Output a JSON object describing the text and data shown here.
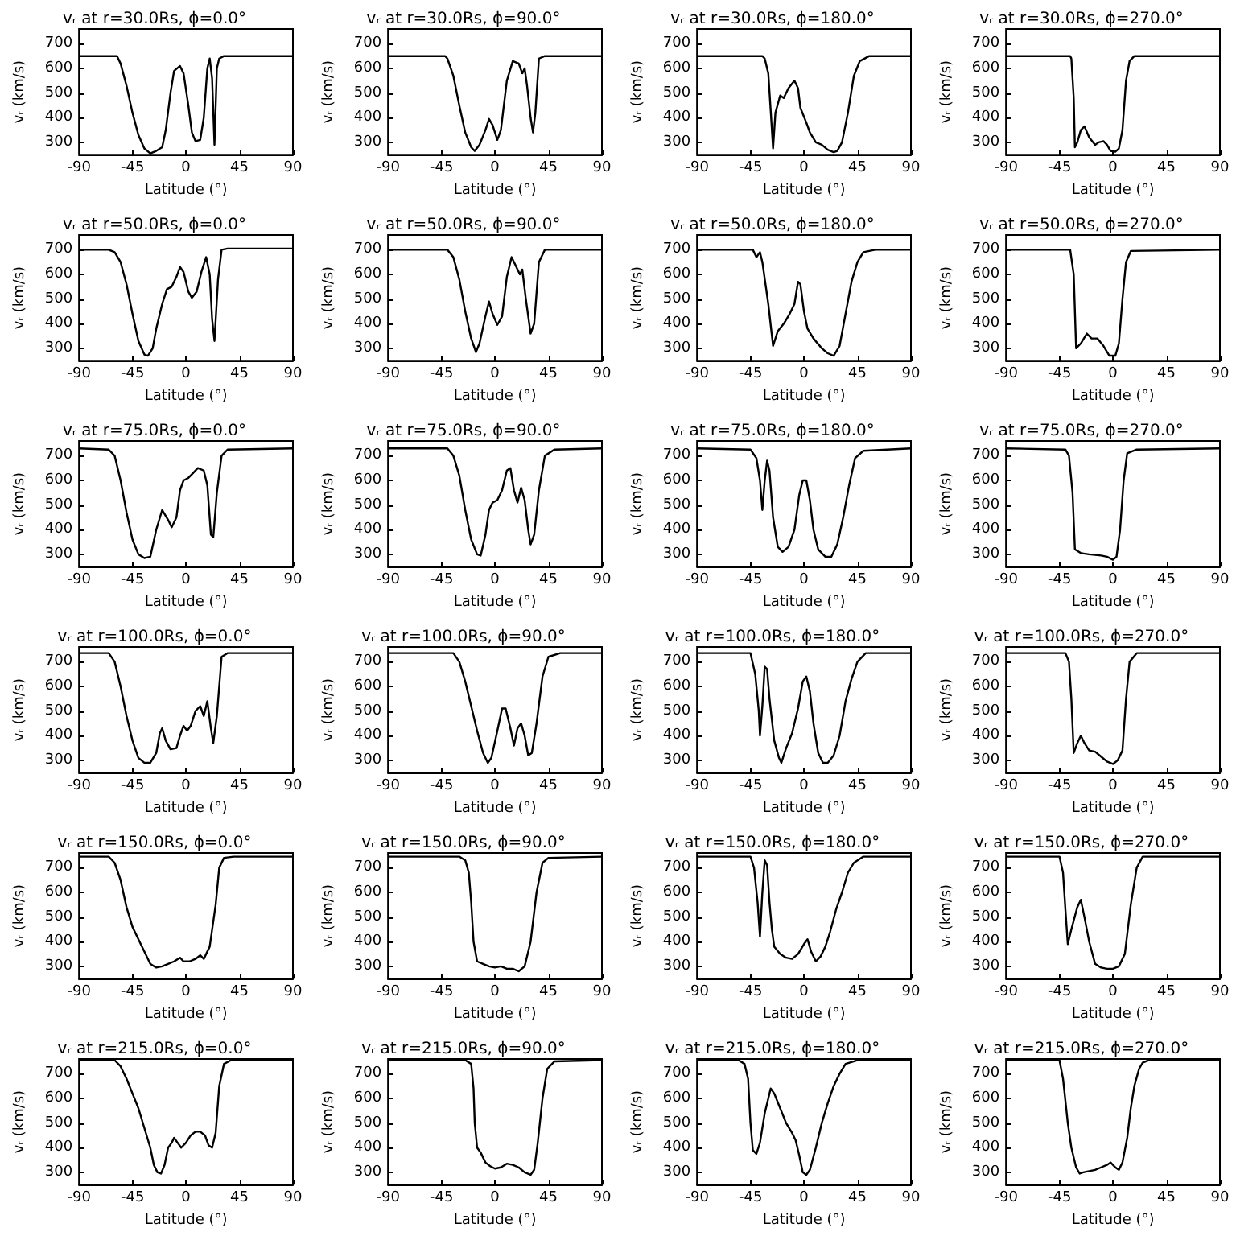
{
  "chart_data": [
    {
      "type": "line",
      "title": "vᵣ at r=30.0Rs, ϕ=0.0°",
      "xlabel": "Latitude (°)",
      "ylabel": "vᵣ (km/s)",
      "xlim": [
        -90,
        90
      ],
      "ylim": [
        250,
        760
      ],
      "xticks": [
        -90,
        -45,
        0,
        45,
        90
      ],
      "yticks": [
        300,
        400,
        500,
        600,
        700
      ],
      "color": "#000000",
      "x": [
        -90,
        -58,
        -55,
        -50,
        -45,
        -40,
        -35,
        -30,
        -25,
        -20,
        -17,
        -13,
        -10,
        -5,
        -2,
        2,
        5,
        8,
        12,
        15,
        18,
        20,
        22,
        24,
        26,
        28,
        32,
        90
      ],
      "values": [
        650,
        650,
        620,
        530,
        420,
        330,
        275,
        255,
        265,
        280,
        350,
        500,
        590,
        610,
        580,
        450,
        340,
        305,
        310,
        400,
        600,
        640,
        560,
        290,
        600,
        640,
        650,
        650
      ]
    },
    {
      "type": "line",
      "title": "vᵣ at r=30.0Rs, ϕ=90.0°",
      "xlabel": "Latitude (°)",
      "ylabel": "vᵣ (km/s)",
      "xlim": [
        -90,
        90
      ],
      "ylim": [
        250,
        760
      ],
      "xticks": [
        -90,
        -45,
        0,
        45,
        90
      ],
      "yticks": [
        300,
        400,
        500,
        600,
        700
      ],
      "color": "#000000",
      "x": [
        -90,
        -42,
        -40,
        -35,
        -30,
        -25,
        -20,
        -17,
        -13,
        -8,
        -5,
        -2,
        2,
        5,
        10,
        15,
        20,
        23,
        25,
        27,
        30,
        32,
        34,
        37,
        42,
        90
      ],
      "values": [
        650,
        650,
        640,
        570,
        450,
        340,
        280,
        265,
        290,
        350,
        395,
        370,
        310,
        350,
        550,
        630,
        620,
        580,
        600,
        530,
        400,
        340,
        420,
        640,
        650,
        650
      ]
    },
    {
      "type": "line",
      "title": "vᵣ at r=30.0Rs, ϕ=180.0°",
      "xlabel": "Latitude (°)",
      "ylabel": "vᵣ (km/s)",
      "xlim": [
        -90,
        90
      ],
      "ylim": [
        250,
        760
      ],
      "xticks": [
        -90,
        -45,
        0,
        45,
        90
      ],
      "yticks": [
        300,
        400,
        500,
        600,
        700
      ],
      "color": "#000000",
      "x": [
        -90,
        -35,
        -33,
        -30,
        -28,
        -26,
        -24,
        -20,
        -17,
        -13,
        -8,
        -5,
        -3,
        2,
        5,
        10,
        15,
        20,
        25,
        28,
        32,
        37,
        42,
        47,
        55,
        90
      ],
      "values": [
        650,
        650,
        640,
        580,
        430,
        275,
        420,
        490,
        480,
        520,
        550,
        520,
        440,
        380,
        340,
        300,
        290,
        270,
        260,
        265,
        300,
        420,
        570,
        630,
        650,
        650
      ]
    },
    {
      "type": "line",
      "title": "vᵣ at r=30.0Rs, ϕ=270.0°",
      "xlabel": "Latitude (°)",
      "ylabel": "vᵣ (km/s)",
      "xlim": [
        -90,
        90
      ],
      "ylim": [
        250,
        760
      ],
      "xticks": [
        -90,
        -45,
        0,
        45,
        90
      ],
      "yticks": [
        300,
        400,
        500,
        600,
        700
      ],
      "color": "#000000",
      "x": [
        -90,
        -36,
        -35,
        -33,
        -32,
        -30,
        -27,
        -24,
        -20,
        -15,
        -12,
        -8,
        -5,
        -2,
        2,
        5,
        8,
        11,
        14,
        18,
        90
      ],
      "values": [
        650,
        650,
        640,
        480,
        280,
        300,
        350,
        365,
        320,
        290,
        300,
        305,
        290,
        265,
        262,
        275,
        350,
        550,
        630,
        650,
        650
      ]
    },
    {
      "type": "line",
      "title": "vᵣ at r=50.0Rs, ϕ=0.0°",
      "xlabel": "Latitude (°)",
      "ylabel": "vᵣ (km/s)",
      "xlim": [
        -90,
        90
      ],
      "ylim": [
        250,
        760
      ],
      "xticks": [
        -90,
        -45,
        0,
        45,
        90
      ],
      "yticks": [
        300,
        400,
        500,
        600,
        700
      ],
      "color": "#000000",
      "x": [
        -90,
        -65,
        -60,
        -55,
        -50,
        -45,
        -40,
        -35,
        -32,
        -28,
        -25,
        -20,
        -16,
        -12,
        -8,
        -5,
        -2,
        2,
        5,
        9,
        13,
        17,
        20,
        22,
        24,
        27,
        30,
        35,
        90
      ],
      "values": [
        700,
        700,
        690,
        650,
        560,
        440,
        330,
        275,
        270,
        300,
        380,
        480,
        540,
        550,
        590,
        630,
        610,
        530,
        505,
        530,
        610,
        670,
        600,
        420,
        330,
        580,
        700,
        705,
        705
      ]
    },
    {
      "type": "line",
      "title": "vᵣ at r=50.0Rs, ϕ=90.0°",
      "xlabel": "Latitude (°)",
      "ylabel": "vᵣ (km/s)",
      "xlim": [
        -90,
        90
      ],
      "ylim": [
        250,
        760
      ],
      "xticks": [
        -90,
        -45,
        0,
        45,
        90
      ],
      "yticks": [
        300,
        400,
        500,
        600,
        700
      ],
      "color": "#000000",
      "x": [
        -90,
        -40,
        -35,
        -30,
        -25,
        -20,
        -16,
        -13,
        -8,
        -5,
        -2,
        2,
        6,
        10,
        14,
        18,
        21,
        23,
        26,
        30,
        33,
        37,
        42,
        90
      ],
      "values": [
        700,
        700,
        670,
        580,
        450,
        340,
        285,
        320,
        430,
        490,
        440,
        395,
        430,
        590,
        670,
        630,
        600,
        620,
        500,
        360,
        400,
        650,
        700,
        700
      ]
    },
    {
      "type": "line",
      "title": "vᵣ at r=50.0Rs, ϕ=180.0°",
      "xlabel": "Latitude (°)",
      "ylabel": "vᵣ (km/s)",
      "xlim": [
        -90,
        90
      ],
      "ylim": [
        250,
        760
      ],
      "xticks": [
        -90,
        -45,
        0,
        45,
        90
      ],
      "yticks": [
        300,
        400,
        500,
        600,
        700
      ],
      "color": "#000000",
      "x": [
        -90,
        -43,
        -40,
        -37,
        -35,
        -30,
        -26,
        -22,
        -17,
        -12,
        -8,
        -5,
        -3,
        0,
        3,
        8,
        15,
        20,
        25,
        30,
        35,
        40,
        45,
        50,
        60,
        90
      ],
      "values": [
        700,
        700,
        670,
        690,
        650,
        480,
        310,
        370,
        400,
        440,
        480,
        570,
        560,
        450,
        380,
        340,
        300,
        280,
        270,
        310,
        440,
        570,
        650,
        690,
        700,
        700
      ]
    },
    {
      "type": "line",
      "title": "vᵣ at r=50.0Rs, ϕ=270.0°",
      "xlabel": "Latitude (°)",
      "ylabel": "vᵣ (km/s)",
      "xlim": [
        -90,
        90
      ],
      "ylim": [
        250,
        760
      ],
      "xticks": [
        -90,
        -45,
        0,
        45,
        90
      ],
      "yticks": [
        300,
        400,
        500,
        600,
        700
      ],
      "color": "#000000",
      "x": [
        -90,
        -36,
        -33,
        -31,
        -27,
        -22,
        -18,
        -13,
        -8,
        -3,
        2,
        5,
        8,
        11,
        15,
        90
      ],
      "values": [
        700,
        700,
        600,
        300,
        320,
        360,
        340,
        340,
        310,
        270,
        270,
        320,
        500,
        650,
        695,
        700
      ]
    },
    {
      "type": "line",
      "title": "vᵣ at r=75.0Rs, ϕ=0.0°",
      "xlabel": "Latitude (°)",
      "ylabel": "vᵣ (km/s)",
      "xlim": [
        -90,
        90
      ],
      "ylim": [
        250,
        760
      ],
      "xticks": [
        -90,
        -45,
        0,
        45,
        90
      ],
      "yticks": [
        300,
        400,
        500,
        600,
        700
      ],
      "color": "#000000",
      "x": [
        -90,
        -65,
        -60,
        -55,
        -50,
        -45,
        -40,
        -35,
        -30,
        -25,
        -20,
        -15,
        -12,
        -8,
        -5,
        -2,
        2,
        6,
        10,
        15,
        18,
        21,
        23,
        26,
        30,
        35,
        90
      ],
      "values": [
        730,
        725,
        700,
        600,
        470,
        360,
        300,
        285,
        290,
        400,
        480,
        440,
        410,
        450,
        560,
        600,
        610,
        630,
        650,
        640,
        580,
        380,
        370,
        550,
        700,
        725,
        730
      ]
    },
    {
      "type": "line",
      "title": "vᵣ at r=75.0Rs, ϕ=90.0°",
      "xlabel": "Latitude (°)",
      "ylabel": "vᵣ (km/s)",
      "xlim": [
        -90,
        90
      ],
      "ylim": [
        250,
        760
      ],
      "xticks": [
        -90,
        -45,
        0,
        45,
        90
      ],
      "yticks": [
        300,
        400,
        500,
        600,
        700
      ],
      "color": "#000000",
      "x": [
        -90,
        -40,
        -35,
        -30,
        -25,
        -20,
        -15,
        -12,
        -8,
        -5,
        -2,
        2,
        6,
        10,
        13,
        16,
        19,
        22,
        25,
        28,
        30,
        33,
        37,
        42,
        50,
        90
      ],
      "values": [
        730,
        730,
        700,
        620,
        480,
        360,
        300,
        295,
        380,
        480,
        510,
        520,
        560,
        640,
        650,
        560,
        510,
        570,
        520,
        400,
        340,
        380,
        560,
        700,
        725,
        730
      ]
    },
    {
      "type": "line",
      "title": "vᵣ at r=75.0Rs, ϕ=180.0°",
      "xlabel": "Latitude (°)",
      "ylabel": "vᵣ (km/s)",
      "xlim": [
        -90,
        90
      ],
      "ylim": [
        250,
        760
      ],
      "xticks": [
        -90,
        -45,
        0,
        45,
        90
      ],
      "yticks": [
        300,
        400,
        500,
        600,
        700
      ],
      "color": "#000000",
      "x": [
        -90,
        -45,
        -40,
        -37,
        -35,
        -33,
        -31,
        -29,
        -26,
        -22,
        -18,
        -13,
        -8,
        -4,
        -1,
        2,
        5,
        8,
        12,
        18,
        23,
        28,
        33,
        38,
        43,
        50,
        90
      ],
      "values": [
        730,
        725,
        690,
        600,
        480,
        600,
        680,
        640,
        450,
        330,
        310,
        330,
        400,
        540,
        600,
        600,
        520,
        400,
        320,
        290,
        290,
        340,
        450,
        580,
        690,
        720,
        730
      ]
    },
    {
      "type": "line",
      "title": "vᵣ at r=75.0Rs, ϕ=270.0°",
      "xlabel": "Latitude (°)",
      "ylabel": "vᵣ (km/s)",
      "xlim": [
        -90,
        90
      ],
      "ylim": [
        250,
        760
      ],
      "xticks": [
        -90,
        -45,
        0,
        45,
        90
      ],
      "yticks": [
        300,
        400,
        500,
        600,
        700
      ],
      "color": "#000000",
      "x": [
        -90,
        -40,
        -37,
        -34,
        -32,
        -27,
        -20,
        -10,
        -5,
        0,
        3,
        6,
        9,
        12,
        20,
        90
      ],
      "values": [
        730,
        725,
        700,
        550,
        320,
        305,
        300,
        295,
        290,
        278,
        290,
        400,
        600,
        710,
        725,
        730
      ]
    },
    {
      "type": "line",
      "title": "vᵣ at r=100.0Rs, ϕ=0.0°",
      "xlabel": "Latitude (°)",
      "ylabel": "vᵣ (km/s)",
      "xlim": [
        -90,
        90
      ],
      "ylim": [
        250,
        760
      ],
      "xticks": [
        -90,
        -45,
        0,
        45,
        90
      ],
      "yticks": [
        300,
        400,
        500,
        600,
        700
      ],
      "color": "#000000",
      "x": [
        -90,
        -65,
        -60,
        -55,
        -50,
        -45,
        -40,
        -35,
        -30,
        -25,
        -22,
        -20,
        -17,
        -13,
        -8,
        -5,
        -2,
        1,
        4,
        8,
        12,
        15,
        18,
        21,
        23,
        26,
        30,
        35,
        90
      ],
      "values": [
        735,
        735,
        700,
        600,
        480,
        380,
        310,
        290,
        290,
        330,
        410,
        430,
        380,
        345,
        350,
        400,
        440,
        420,
        440,
        500,
        520,
        480,
        540,
        430,
        370,
        480,
        720,
        735,
        735
      ]
    },
    {
      "type": "line",
      "title": "vᵣ at r=100.0Rs, ϕ=90.0°",
      "xlabel": "Latitude (°)",
      "ylabel": "vᵣ (km/s)",
      "xlim": [
        -90,
        90
      ],
      "ylim": [
        250,
        760
      ],
      "xticks": [
        -90,
        -45,
        0,
        45,
        90
      ],
      "yticks": [
        300,
        400,
        500,
        600,
        700
      ],
      "color": "#000000",
      "x": [
        -90,
        -35,
        -30,
        -25,
        -20,
        -15,
        -10,
        -6,
        -3,
        2,
        6,
        9,
        13,
        16,
        19,
        22,
        25,
        28,
        31,
        35,
        40,
        45,
        55,
        90
      ],
      "values": [
        735,
        735,
        700,
        620,
        520,
        420,
        330,
        290,
        310,
        420,
        510,
        510,
        430,
        360,
        430,
        450,
        400,
        320,
        330,
        450,
        640,
        720,
        735,
        735
      ]
    },
    {
      "type": "line",
      "title": "vᵣ at r=100.0Rs, ϕ=180.0°",
      "xlabel": "Latitude (°)",
      "ylabel": "vᵣ (km/s)",
      "xlim": [
        -90,
        90
      ],
      "ylim": [
        250,
        760
      ],
      "xticks": [
        -90,
        -45,
        0,
        45,
        90
      ],
      "yticks": [
        300,
        400,
        500,
        600,
        700
      ],
      "color": "#000000",
      "x": [
        -90,
        -45,
        -41,
        -38,
        -37,
        -35,
        -33,
        -31,
        -29,
        -25,
        -21,
        -19,
        -15,
        -10,
        -5,
        -1,
        2,
        5,
        8,
        12,
        16,
        20,
        25,
        30,
        35,
        40,
        45,
        52,
        90
      ],
      "values": [
        735,
        735,
        650,
        500,
        400,
        520,
        680,
        670,
        550,
        380,
        310,
        290,
        350,
        410,
        510,
        620,
        640,
        580,
        450,
        330,
        290,
        290,
        320,
        400,
        540,
        630,
        700,
        735,
        735
      ]
    },
    {
      "type": "line",
      "title": "vᵣ at r=100.0Rs, ϕ=270.0°",
      "xlabel": "Latitude (°)",
      "ylabel": "vᵣ (km/s)",
      "xlim": [
        -90,
        90
      ],
      "ylim": [
        250,
        760
      ],
      "xticks": [
        -90,
        -45,
        0,
        45,
        90
      ],
      "yticks": [
        300,
        400,
        500,
        600,
        700
      ],
      "color": "#000000",
      "x": [
        -90,
        -40,
        -37,
        -35,
        -33,
        -30,
        -27,
        -24,
        -20,
        -15,
        -10,
        -5,
        0,
        4,
        8,
        11,
        14,
        20,
        90
      ],
      "values": [
        735,
        735,
        700,
        550,
        330,
        370,
        400,
        370,
        340,
        335,
        315,
        295,
        285,
        300,
        340,
        550,
        700,
        735,
        735
      ]
    },
    {
      "type": "line",
      "title": "vᵣ at r=150.0Rs, ϕ=0.0°",
      "xlabel": "Latitude (°)",
      "ylabel": "vᵣ (km/s)",
      "xlim": [
        -90,
        90
      ],
      "ylim": [
        250,
        760
      ],
      "xticks": [
        -90,
        -45,
        0,
        45,
        90
      ],
      "yticks": [
        300,
        400,
        500,
        600,
        700
      ],
      "color": "#000000",
      "x": [
        -90,
        -65,
        -60,
        -55,
        -50,
        -45,
        -40,
        -35,
        -30,
        -25,
        -20,
        -15,
        -10,
        -5,
        -2,
        3,
        8,
        12,
        15,
        20,
        25,
        28,
        32,
        40,
        90
      ],
      "values": [
        745,
        745,
        720,
        650,
        540,
        460,
        410,
        360,
        310,
        295,
        300,
        310,
        320,
        335,
        320,
        320,
        330,
        345,
        330,
        380,
        550,
        700,
        740,
        745,
        745
      ]
    },
    {
      "type": "line",
      "title": "vᵣ at r=150.0Rs, ϕ=90.0°",
      "xlabel": "Latitude (°)",
      "ylabel": "vᵣ (km/s)",
      "xlim": [
        -90,
        90
      ],
      "ylim": [
        250,
        760
      ],
      "xticks": [
        -90,
        -45,
        0,
        45,
        90
      ],
      "yticks": [
        300,
        400,
        500,
        600,
        700
      ],
      "color": "#000000",
      "x": [
        -90,
        -30,
        -25,
        -22,
        -20,
        -18,
        -15,
        -10,
        -5,
        0,
        5,
        10,
        15,
        20,
        25,
        30,
        35,
        40,
        45,
        90
      ],
      "values": [
        745,
        745,
        730,
        680,
        560,
        400,
        320,
        310,
        300,
        295,
        300,
        290,
        290,
        280,
        300,
        400,
        600,
        720,
        740,
        745
      ]
    },
    {
      "type": "line",
      "title": "vᵣ at r=150.0Rs, ϕ=180.0°",
      "xlabel": "Latitude (°)",
      "ylabel": "vᵣ (km/s)",
      "xlim": [
        -90,
        90
      ],
      "ylim": [
        250,
        760
      ],
      "xticks": [
        -90,
        -45,
        0,
        45,
        90
      ],
      "yticks": [
        300,
        400,
        500,
        600,
        700
      ],
      "color": "#000000",
      "x": [
        -90,
        -45,
        -42,
        -39,
        -37,
        -35,
        -33,
        -31,
        -29,
        -27,
        -25,
        -20,
        -15,
        -10,
        -5,
        0,
        3,
        6,
        10,
        14,
        18,
        22,
        27,
        32,
        37,
        42,
        50,
        90
      ],
      "values": [
        745,
        745,
        700,
        560,
        420,
        600,
        730,
        710,
        560,
        450,
        380,
        350,
        335,
        330,
        350,
        390,
        410,
        360,
        320,
        340,
        380,
        440,
        530,
        600,
        680,
        720,
        745,
        745
      ]
    },
    {
      "type": "line",
      "title": "vᵣ at r=150.0Rs, ϕ=270.0°",
      "xlabel": "Latitude (°)",
      "ylabel": "vᵣ (km/s)",
      "xlim": [
        -90,
        90
      ],
      "ylim": [
        250,
        760
      ],
      "xticks": [
        -90,
        -45,
        0,
        45,
        90
      ],
      "yticks": [
        300,
        400,
        500,
        600,
        700
      ],
      "color": "#000000",
      "x": [
        -90,
        -45,
        -42,
        -40,
        -38,
        -35,
        -30,
        -27,
        -24,
        -20,
        -15,
        -10,
        -5,
        0,
        5,
        10,
        15,
        20,
        25,
        90
      ],
      "values": [
        745,
        745,
        680,
        530,
        390,
        450,
        540,
        570,
        500,
        400,
        310,
        295,
        290,
        290,
        300,
        350,
        550,
        700,
        745,
        745
      ]
    },
    {
      "type": "line",
      "title": "vᵣ at r=215.0Rs, ϕ=0.0°",
      "xlabel": "Latitude (°)",
      "ylabel": "vᵣ (km/s)",
      "xlim": [
        -90,
        90
      ],
      "ylim": [
        250,
        760
      ],
      "xticks": [
        -90,
        -45,
        0,
        45,
        90
      ],
      "yticks": [
        300,
        400,
        500,
        600,
        700
      ],
      "color": "#000000",
      "x": [
        -90,
        -60,
        -55,
        -50,
        -45,
        -40,
        -35,
        -30,
        -27,
        -24,
        -21,
        -18,
        -15,
        -12,
        -10,
        -7,
        -4,
        0,
        4,
        8,
        12,
        16,
        19,
        22,
        25,
        28,
        32,
        38,
        90
      ],
      "values": [
        755,
        755,
        730,
        680,
        620,
        560,
        480,
        400,
        330,
        300,
        295,
        330,
        400,
        420,
        440,
        420,
        400,
        420,
        450,
        465,
        465,
        450,
        410,
        400,
        460,
        650,
        740,
        755,
        755
      ]
    },
    {
      "type": "line",
      "title": "vᵣ at r=215.0Rs, ϕ=90.0°",
      "xlabel": "Latitude (°)",
      "ylabel": "vᵣ (km/s)",
      "xlim": [
        -90,
        90
      ],
      "ylim": [
        250,
        760
      ],
      "xticks": [
        -90,
        -45,
        0,
        45,
        90
      ],
      "yticks": [
        300,
        400,
        500,
        600,
        700
      ],
      "color": "#000000",
      "x": [
        -90,
        -25,
        -20,
        -18,
        -17,
        -15,
        -12,
        -8,
        -4,
        0,
        5,
        10,
        15,
        20,
        25,
        30,
        33,
        36,
        40,
        44,
        50,
        90
      ],
      "values": [
        755,
        755,
        740,
        640,
        500,
        400,
        380,
        340,
        325,
        315,
        320,
        335,
        330,
        320,
        300,
        290,
        310,
        420,
        600,
        720,
        750,
        755
      ]
    },
    {
      "type": "line",
      "title": "vᵣ at r=215.0Rs, ϕ=180.0°",
      "xlabel": "Latitude (°)",
      "ylabel": "vᵣ (km/s)",
      "xlim": [
        -90,
        90
      ],
      "ylim": [
        250,
        760
      ],
      "xticks": [
        -90,
        -45,
        0,
        45,
        90
      ],
      "yticks": [
        300,
        400,
        500,
        600,
        700
      ],
      "color": "#000000",
      "x": [
        -90,
        -55,
        -50,
        -47,
        -45,
        -43,
        -40,
        -37,
        -33,
        -30,
        -28,
        -25,
        -20,
        -15,
        -10,
        -7,
        -4,
        -1,
        2,
        5,
        10,
        15,
        20,
        25,
        30,
        35,
        45,
        90
      ],
      "values": [
        755,
        755,
        740,
        680,
        500,
        390,
        375,
        420,
        540,
        600,
        640,
        620,
        560,
        500,
        460,
        430,
        370,
        300,
        290,
        310,
        400,
        500,
        580,
        650,
        700,
        740,
        755,
        755
      ]
    },
    {
      "type": "line",
      "title": "vᵣ at r=215.0Rs, ϕ=270.0°",
      "xlabel": "Latitude (°)",
      "ylabel": "vᵣ (km/s)",
      "xlim": [
        -90,
        90
      ],
      "ylim": [
        250,
        760
      ],
      "xticks": [
        -90,
        -45,
        0,
        45,
        90
      ],
      "yticks": [
        300,
        400,
        500,
        600,
        700
      ],
      "color": "#000000",
      "x": [
        -90,
        -45,
        -42,
        -38,
        -35,
        -31,
        -28,
        -25,
        -20,
        -15,
        -10,
        -5,
        -2,
        2,
        5,
        8,
        12,
        15,
        18,
        22,
        25,
        30,
        90
      ],
      "values": [
        755,
        755,
        680,
        500,
        400,
        320,
        295,
        300,
        305,
        310,
        320,
        330,
        340,
        320,
        310,
        340,
        440,
        560,
        650,
        720,
        745,
        755,
        755
      ]
    }
  ]
}
